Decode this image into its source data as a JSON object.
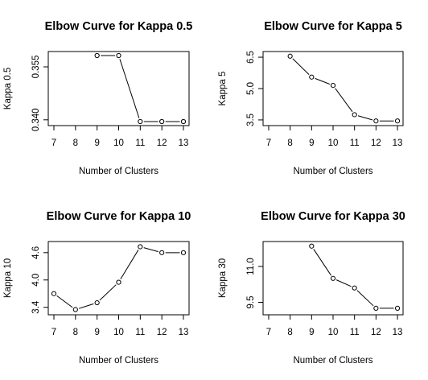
{
  "chart_data": [
    {
      "type": "line",
      "title": "Elbow Curve for Kappa 0.5",
      "xlabel": "Number of Clusters",
      "ylabel": "Kappa 0.5",
      "xlim": [
        7,
        13
      ],
      "ylim": [
        0.3392,
        0.3585
      ],
      "x_ticks": [
        7,
        8,
        9,
        10,
        11,
        12,
        13
      ],
      "y_ticks": [
        0.34,
        0.355
      ],
      "y_tick_labels": [
        "0.340",
        "0.355"
      ],
      "x": [
        9,
        10,
        11,
        12,
        13
      ],
      "series": [
        {
          "values": [
            0.3582,
            0.3582,
            0.3395,
            0.3395,
            0.3395
          ]
        }
      ]
    },
    {
      "type": "line",
      "title": "Elbow Curve for Kappa 5",
      "xlabel": "Number of Clusters",
      "ylabel": "Kappa 5",
      "xlim": [
        7,
        13
      ],
      "ylim": [
        3.37,
        6.63
      ],
      "x_ticks": [
        7,
        8,
        9,
        10,
        11,
        12,
        13
      ],
      "y_ticks": [
        3.5,
        5.0,
        6.5
      ],
      "y_tick_labels": [
        "3.5",
        "5.0",
        "6.5"
      ],
      "x": [
        8,
        9,
        10,
        11,
        12,
        13
      ],
      "series": [
        {
          "values": [
            6.55,
            5.55,
            5.15,
            3.75,
            3.45,
            3.45
          ]
        }
      ]
    },
    {
      "type": "line",
      "title": "Elbow Curve for Kappa 10",
      "xlabel": "Number of Clusters",
      "ylabel": "Kappa 10",
      "xlim": [
        7,
        13
      ],
      "ylim": [
        3.3,
        4.78
      ],
      "x_ticks": [
        7,
        8,
        9,
        10,
        11,
        12,
        13
      ],
      "y_ticks": [
        3.4,
        4.0,
        4.6
      ],
      "y_tick_labels": [
        "3.4",
        "4.0",
        "4.6"
      ],
      "x": [
        7,
        8,
        9,
        10,
        11,
        12,
        13
      ],
      "series": [
        {
          "values": [
            3.7,
            3.35,
            3.5,
            3.95,
            4.73,
            4.6,
            4.6
          ]
        }
      ]
    },
    {
      "type": "line",
      "title": "Elbow Curve for Kappa 30",
      "xlabel": "Number of Clusters",
      "ylabel": "Kappa 30",
      "xlim": [
        7,
        13
      ],
      "ylim": [
        9.1,
        11.92
      ],
      "x_ticks": [
        7,
        8,
        9,
        10,
        11,
        12,
        13
      ],
      "y_ticks": [
        9.5,
        11.0
      ],
      "y_tick_labels": [
        "9.5",
        "11.0"
      ],
      "x": [
        9,
        10,
        11,
        12,
        13
      ],
      "series": [
        {
          "values": [
            11.85,
            10.5,
            10.1,
            9.25,
            9.25
          ]
        }
      ]
    }
  ]
}
